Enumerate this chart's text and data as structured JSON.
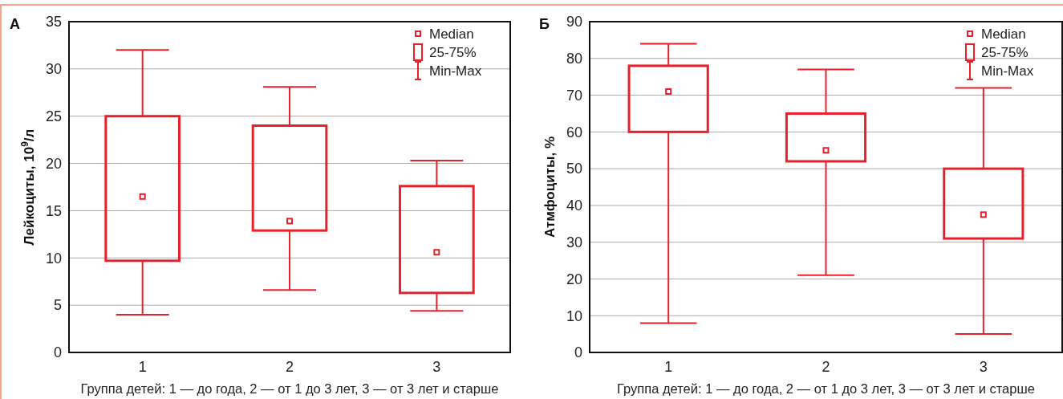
{
  "chart_data": [
    {
      "type": "box",
      "title": "А",
      "xlabel": "Группа детей: 1 — до года, 2 — от 1 до 3 лет, 3 — от 3 лет и старше",
      "ylabel": "Лейкоциты, 10$^{9}$/л",
      "categories": [
        "1",
        "2",
        "3"
      ],
      "color": "#e8202a",
      "ylim": [
        0,
        35
      ],
      "yticks": [
        0,
        5,
        10,
        15,
        20,
        25,
        30,
        35
      ],
      "grid": "y",
      "annotations": [
        "Median",
        "25-75%",
        "Min-Max"
      ],
      "boxes": [
        {
          "low": 4,
          "q1": 9.7,
          "median": 16.5,
          "q3": 25,
          "high": 32
        },
        {
          "low": 6.6,
          "q1": 12.9,
          "median": 13.9,
          "q3": 24,
          "high": 28.1
        },
        {
          "low": 4.4,
          "q1": 6.3,
          "median": 10.6,
          "q3": 17.6,
          "high": 20.3
        }
      ]
    },
    {
      "type": "box",
      "title": "Б",
      "xlabel": "Группа детей: 1 — до года, 2 — от 1 до 3 лет, 3 — от 3 лет и старше",
      "ylabel": "Атмфоциты, %",
      "categories": [
        "1",
        "2",
        "3"
      ],
      "color": "#e8202a",
      "ylim": [
        0,
        90
      ],
      "yticks": [
        0,
        10,
        20,
        30,
        40,
        50,
        60,
        70,
        80,
        90
      ],
      "grid": "y",
      "annotations": [
        "Median",
        "25-75%",
        "Min-Max"
      ],
      "boxes": [
        {
          "low": 8,
          "q1": 60,
          "median": 71,
          "q3": 78,
          "high": 84
        },
        {
          "low": 21,
          "q1": 52,
          "median": 55,
          "q3": 65,
          "high": 77
        },
        {
          "low": 5,
          "q1": 31,
          "median": 37.5,
          "q3": 50,
          "high": 72
        }
      ]
    }
  ]
}
